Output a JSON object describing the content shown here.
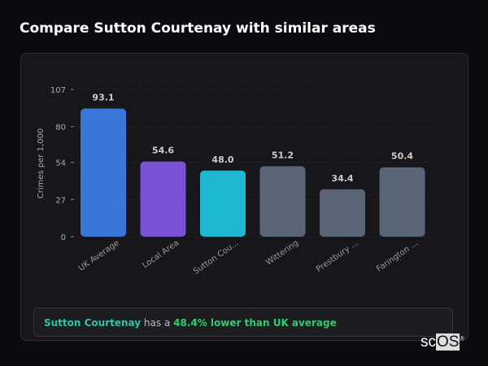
{
  "title": "Compare Sutton Courtenay with similar areas",
  "chart_data": {
    "type": "bar",
    "ylabel": "Crimes per 1,000",
    "xlabel": "",
    "ylim": [
      0,
      107
    ],
    "yticks": [
      0,
      27,
      54,
      80,
      107
    ],
    "grid": true,
    "categories": [
      "UK Average",
      "Local Area",
      "Sutton Cou...",
      "Wittering",
      "Prestbury ...",
      "Farington ..."
    ],
    "values": [
      93.1,
      54.6,
      48.0,
      51.2,
      34.4,
      50.4
    ],
    "value_labels": [
      "93.1",
      "54.6",
      "48.0",
      "51.2",
      "34.4",
      "50.4"
    ],
    "colors": [
      "#3a76d8",
      "#7b52d4",
      "#1fb8d0",
      "#5a6577",
      "#5a6577",
      "#5a6577"
    ]
  },
  "summary": {
    "area": "Sutton Courtenay",
    "middle": " has a ",
    "stat": "48.4% lower than UK average"
  },
  "logo": {
    "text_sc": "sc",
    "text_os": "OS",
    "mark": "®"
  }
}
